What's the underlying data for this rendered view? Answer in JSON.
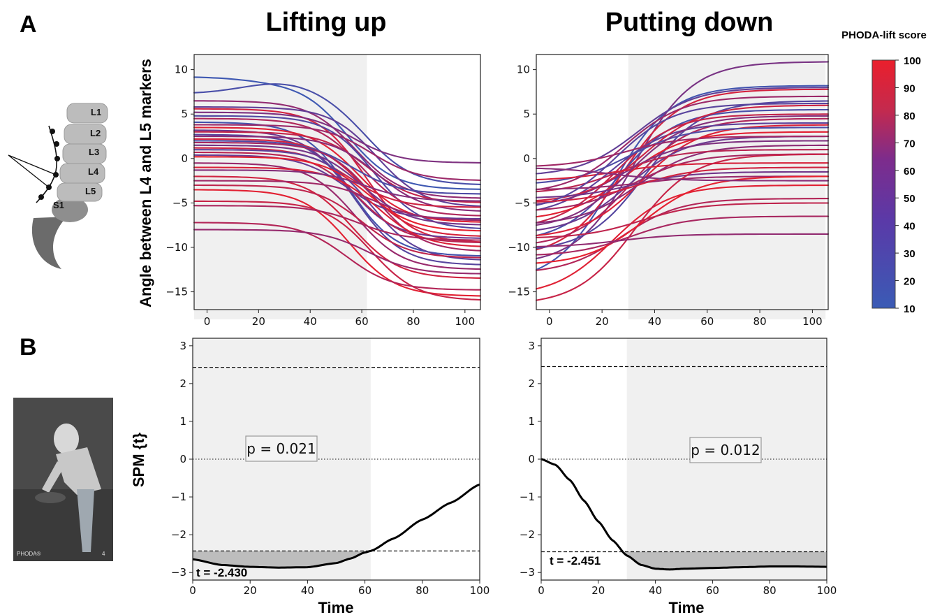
{
  "panel_labels": {
    "a": "A",
    "b": "B"
  },
  "columns": {
    "left_title": "Lifting up",
    "right_title": "Putting down"
  },
  "colorbar": {
    "title": "PHODA-lift score",
    "ticks": [
      10,
      20,
      30,
      40,
      50,
      60,
      70,
      80,
      90,
      100
    ],
    "range": [
      10,
      100
    ],
    "colors": {
      "low": "#3a5bb5",
      "high": "#ea1f2c"
    }
  },
  "spine": {
    "labels": [
      "L1",
      "L2",
      "L3",
      "L4",
      "L5",
      "S1"
    ]
  },
  "photo": {
    "caption": "PHODA®",
    "number": "4"
  },
  "chart_data": [
    {
      "type": "line",
      "panel": "A-left",
      "title": "Lifting up",
      "ylabel": "Angle between L4 and L5 markers",
      "xlim": [
        -5,
        106
      ],
      "ylim": [
        -17,
        11.7
      ],
      "xticks": [
        0,
        20,
        40,
        60,
        80,
        100
      ],
      "yticks": [
        -15,
        -10,
        -5,
        0,
        5,
        10
      ],
      "shaded_region": [
        -5,
        62
      ],
      "series": [
        {
          "start": 9.2,
          "end": -3.5,
          "score": 12,
          "peak": 8.8
        },
        {
          "start": 7.3,
          "end": -3.0,
          "score": 18,
          "peak": 8.6
        },
        {
          "start": 6.5,
          "end": -4.5,
          "score": 55
        },
        {
          "start": 5.8,
          "end": -5.5,
          "score": 30
        },
        {
          "start": 5.6,
          "end": -9.5,
          "score": 88
        },
        {
          "start": 5.2,
          "end": -0.5,
          "score": 45
        },
        {
          "start": 4.8,
          "end": -8.0,
          "score": 22
        },
        {
          "start": 4.5,
          "end": -6.5,
          "score": 70
        },
        {
          "start": 4.1,
          "end": -11.0,
          "score": 15
        },
        {
          "start": 3.8,
          "end": -2.5,
          "score": 60
        },
        {
          "start": 3.5,
          "end": -7.2,
          "score": 95
        },
        {
          "start": 3.2,
          "end": -9.0,
          "score": 35
        },
        {
          "start": 3.0,
          "end": -5.0,
          "score": 80
        },
        {
          "start": 2.7,
          "end": -12.0,
          "score": 25
        },
        {
          "start": 2.5,
          "end": -6.0,
          "score": 50
        },
        {
          "start": 2.2,
          "end": -8.8,
          "score": 90
        },
        {
          "start": 2.0,
          "end": -4.0,
          "score": 20
        },
        {
          "start": 1.8,
          "end": -10.5,
          "score": 65
        },
        {
          "start": 1.5,
          "end": -7.5,
          "score": 40
        },
        {
          "start": 1.2,
          "end": -5.5,
          "score": 85
        },
        {
          "start": 1.0,
          "end": -11.5,
          "score": 28
        },
        {
          "start": 0.7,
          "end": -9.5,
          "score": 75
        },
        {
          "start": 0.4,
          "end": -6.8,
          "score": 33
        },
        {
          "start": 0.2,
          "end": -8.2,
          "score": 98
        },
        {
          "start": -0.5,
          "end": -12.5,
          "score": 58
        },
        {
          "start": -1.0,
          "end": -10.0,
          "score": 92
        },
        {
          "start": -1.3,
          "end": -4.8,
          "score": 48
        },
        {
          "start": -2.0,
          "end": -13.5,
          "score": 86
        },
        {
          "start": -2.5,
          "end": -7.0,
          "score": 62
        },
        {
          "start": -3.0,
          "end": -11.2,
          "score": 78
        },
        {
          "start": -3.5,
          "end": -15.5,
          "score": 96
        },
        {
          "start": -4.8,
          "end": -16.0,
          "score": 82
        },
        {
          "start": -5.3,
          "end": -9.2,
          "score": 68
        },
        {
          "start": -7.2,
          "end": -14.8,
          "score": 72
        },
        {
          "start": -8.0,
          "end": -13.0,
          "score": 57
        }
      ]
    },
    {
      "type": "line",
      "panel": "A-right",
      "title": "Putting down",
      "xlim": [
        -5,
        106
      ],
      "ylim": [
        -17,
        11.7
      ],
      "xticks": [
        0,
        20,
        40,
        60,
        80,
        100
      ],
      "yticks": [
        -15,
        -10,
        -5,
        0,
        5,
        10
      ],
      "shaded_region": [
        30,
        105
      ],
      "series": [
        {
          "start": -14.0,
          "end": 8.2,
          "score": 14
        },
        {
          "start": -12.0,
          "end": 10.9,
          "score": 42
        },
        {
          "start": -11.2,
          "end": 7.8,
          "score": 88
        },
        {
          "start": -10.5,
          "end": 6.5,
          "score": 24
        },
        {
          "start": -10.0,
          "end": 4.5,
          "score": 70
        },
        {
          "start": -9.5,
          "end": 5.5,
          "score": 18
        },
        {
          "start": -9.0,
          "end": 3.8,
          "score": 92
        },
        {
          "start": -8.5,
          "end": 2.5,
          "score": 35
        },
        {
          "start": -8.0,
          "end": 5.0,
          "score": 80
        },
        {
          "start": -7.5,
          "end": 1.5,
          "score": 52
        },
        {
          "start": -7.0,
          "end": 3.0,
          "score": 96
        },
        {
          "start": -6.5,
          "end": 4.0,
          "score": 28
        },
        {
          "start": -6.0,
          "end": 0.5,
          "score": 65
        },
        {
          "start": -5.5,
          "end": 2.0,
          "score": 45
        },
        {
          "start": -5.0,
          "end": 6.0,
          "score": 85
        },
        {
          "start": -4.5,
          "end": -1.5,
          "score": 38
        },
        {
          "start": -4.0,
          "end": 1.0,
          "score": 75
        },
        {
          "start": -3.5,
          "end": -2.0,
          "score": 58
        },
        {
          "start": -3.0,
          "end": 3.5,
          "score": 20
        },
        {
          "start": -2.5,
          "end": -0.5,
          "score": 90
        },
        {
          "start": -2.0,
          "end": 8.0,
          "score": 30
        },
        {
          "start": -1.0,
          "end": 2.5,
          "score": 62
        },
        {
          "start": -15.5,
          "end": -3.0,
          "score": 95
        },
        {
          "start": -16.5,
          "end": 0.5,
          "score": 82
        },
        {
          "start": -13.0,
          "end": -4.5,
          "score": 72
        },
        {
          "start": -12.0,
          "end": -2.0,
          "score": 98
        },
        {
          "start": -11.0,
          "end": -6.5,
          "score": 66
        },
        {
          "start": -10.0,
          "end": -8.5,
          "score": 55
        },
        {
          "start": -9.0,
          "end": -5.0,
          "score": 78
        },
        {
          "start": -8.0,
          "end": 4.8,
          "score": 48
        },
        {
          "start": -6.0,
          "end": 6.2,
          "score": 26
        },
        {
          "start": -5.0,
          "end": -1.0,
          "score": 86
        },
        {
          "start": -4.0,
          "end": 7.0,
          "score": 60
        },
        {
          "start": -1.0,
          "end": -2.5,
          "score": 50
        }
      ]
    },
    {
      "type": "line",
      "panel": "B-left",
      "ylabel": "SPM {t}",
      "xlabel": "Time",
      "xlim": [
        0,
        100
      ],
      "ylim": [
        -3.2,
        3.2
      ],
      "xticks": [
        0,
        20,
        40,
        60,
        80,
        100
      ],
      "yticks": [
        -3,
        -2,
        -1,
        0,
        1,
        2,
        3
      ],
      "shaded_region": [
        0,
        62
      ],
      "threshold": 2.43,
      "p_value": "p = 0.021",
      "t_label": "t = -2.430",
      "x": [
        0,
        10,
        20,
        30,
        40,
        50,
        55,
        60,
        62,
        70,
        80,
        90,
        100
      ],
      "y": [
        -2.65,
        -2.8,
        -2.85,
        -2.87,
        -2.86,
        -2.75,
        -2.63,
        -2.47,
        -2.43,
        -2.1,
        -1.6,
        -1.15,
        -0.67
      ]
    },
    {
      "type": "line",
      "panel": "B-right",
      "xlabel": "Time",
      "xlim": [
        0,
        100
      ],
      "ylim": [
        -3.2,
        3.2
      ],
      "xticks": [
        0,
        20,
        40,
        60,
        80,
        100
      ],
      "yticks": [
        -3,
        -2,
        -1,
        0,
        1,
        2,
        3
      ],
      "shaded_region": [
        30,
        100
      ],
      "threshold": 2.451,
      "p_value": "p = 0.012",
      "t_label": "t = -2.451",
      "x": [
        0,
        5,
        10,
        15,
        20,
        25,
        30,
        35,
        40,
        45,
        50,
        60,
        70,
        80,
        90,
        100
      ],
      "y": [
        0,
        -0.15,
        -0.55,
        -1.1,
        -1.65,
        -2.15,
        -2.55,
        -2.8,
        -2.9,
        -2.92,
        -2.9,
        -2.88,
        -2.86,
        -2.84,
        -2.84,
        -2.85
      ]
    }
  ]
}
